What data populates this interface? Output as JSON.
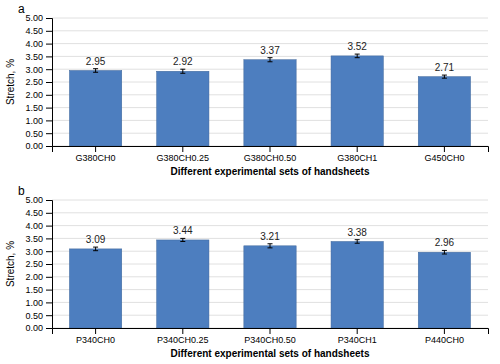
{
  "chart_data": [
    {
      "type": "bar",
      "title": "a",
      "categories": [
        "G380CH0",
        "G380CH0.25",
        "G380CH0.50",
        "G380CH1",
        "G450CH0"
      ],
      "values": [
        2.95,
        2.92,
        3.37,
        3.52,
        2.71
      ],
      "errors": [
        0.07,
        0.08,
        0.08,
        0.07,
        0.06
      ],
      "color": "#4d7ebf",
      "ylabel": "Stretch, %",
      "xlabel": "Different experimental sets of handsheets",
      "ylim": [
        0,
        5.0
      ],
      "yticks": [
        {
          "value": 0,
          "label": "0.00"
        },
        {
          "value": 0.5,
          "label": "0.50"
        },
        {
          "value": 1,
          "label": "1.00"
        },
        {
          "value": 1.5,
          "label": "1.50"
        },
        {
          "value": 2,
          "label": "2.00"
        },
        {
          "value": 2.5,
          "label": "2.50"
        },
        {
          "value": 3,
          "label": "3.00"
        },
        {
          "value": 3.5,
          "label": "3.50"
        },
        {
          "value": 4,
          "label": "4.00"
        },
        {
          "value": 4.5,
          "label": "4.50"
        },
        {
          "value": 5,
          "label": "5.00"
        }
      ],
      "grid": true,
      "data_labels": true
    },
    {
      "type": "bar",
      "title": "b",
      "categories": [
        "P340CH0",
        "P340CH0.25",
        "P340CH0.50",
        "P340CH1",
        "P440CH0"
      ],
      "values": [
        3.09,
        3.44,
        3.21,
        3.38,
        2.96
      ],
      "errors": [
        0.07,
        0.06,
        0.08,
        0.07,
        0.07
      ],
      "color": "#4d7ebf",
      "ylabel": "Stretch, %",
      "xlabel": "Different experimental sets of handsheets",
      "ylim": [
        0,
        5.0
      ],
      "yticks": [
        {
          "value": 0,
          "label": "0.00"
        },
        {
          "value": 0.5,
          "label": "0.50"
        },
        {
          "value": 1,
          "label": "1.00"
        },
        {
          "value": 1.5,
          "label": "1.50"
        },
        {
          "value": 2,
          "label": "2.00"
        },
        {
          "value": 2.5,
          "label": "2.50"
        },
        {
          "value": 3,
          "label": "3.00"
        },
        {
          "value": 3.5,
          "label": "3.50"
        },
        {
          "value": 4,
          "label": "4.00"
        },
        {
          "value": 4.5,
          "label": "4.50"
        },
        {
          "value": 5,
          "label": "5.00"
        }
      ],
      "grid": true,
      "data_labels": true
    }
  ]
}
